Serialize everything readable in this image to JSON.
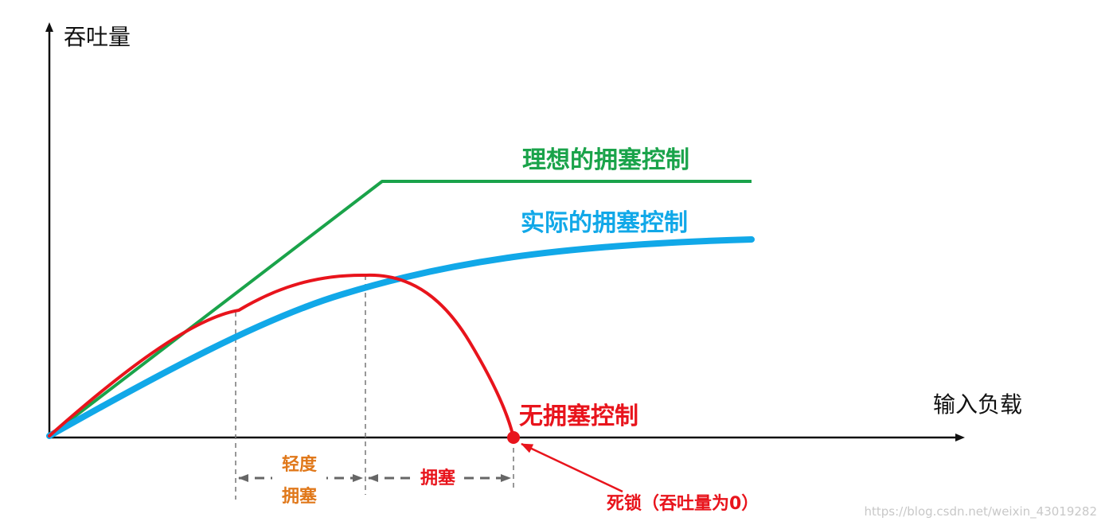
{
  "axes": {
    "y_label": "吞吐量",
    "x_label": "输入负载"
  },
  "curves": {
    "ideal": {
      "label": "理想的拥塞控制",
      "color": "#1aa34a"
    },
    "actual": {
      "label": "实际的拥塞控制",
      "color": "#11a8e8"
    },
    "none": {
      "label": "无拥塞控制",
      "color": "#e8141c"
    }
  },
  "regions": {
    "light_congestion": {
      "line1": "轻度",
      "line2": "拥塞",
      "color": "#e0781a"
    },
    "congestion": {
      "label": "拥塞",
      "color": "#e8141c"
    }
  },
  "deadlock": {
    "label": "死锁（吞吐量为0）",
    "color": "#e8141c"
  },
  "watermark": "https://blog.csdn.net/weixin_43019282"
}
